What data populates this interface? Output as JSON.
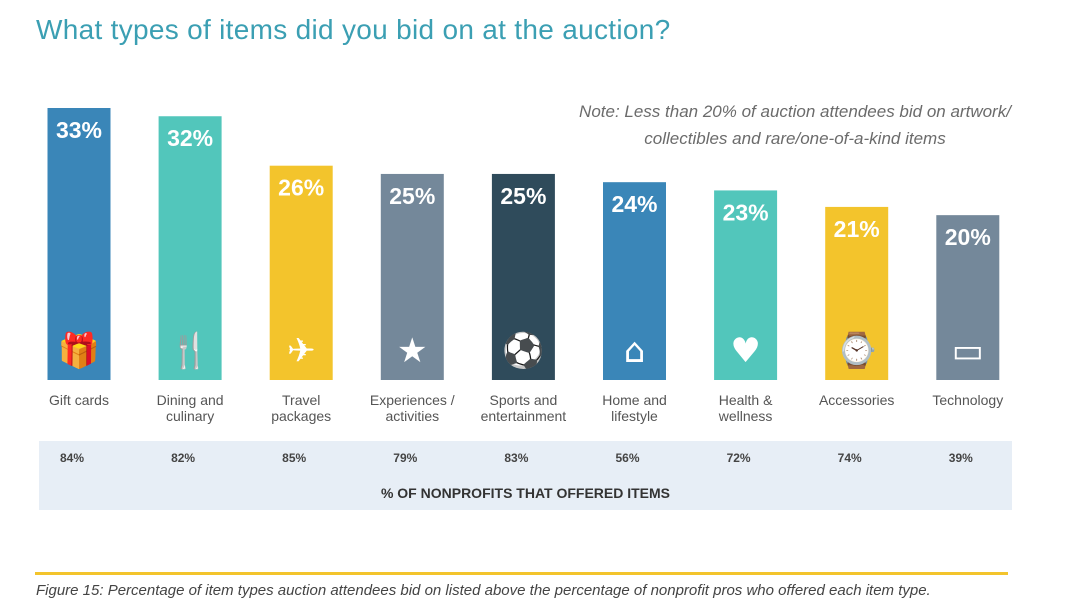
{
  "title": "What types of items did you bid on at the auction?",
  "note": "Note: Less than 20% of auction attendees bid on artwork/ collectibles and rare/one-of-a-kind items",
  "caption": "Figure 15: Percentage of item types auction attendees bid on listed above the percentage of nonprofit pros who offered each item type.",
  "chart_data": {
    "type": "bar",
    "categories": [
      "Gift cards",
      "Dining and culinary",
      "Travel packages",
      "Experiences / activities",
      "Sports and entertainment",
      "Home and lifestyle",
      "Health & wellness",
      "Accessories",
      "Technology"
    ],
    "category_lines": [
      [
        "Gift cards"
      ],
      [
        "Dining and",
        "culinary"
      ],
      [
        "Travel",
        "packages"
      ],
      [
        "Experiences /",
        "activities"
      ],
      [
        "Sports and",
        "entertainment"
      ],
      [
        "Home and",
        "lifestyle"
      ],
      [
        "Health &",
        "wellness"
      ],
      [
        "Accessories"
      ],
      [
        "Technology"
      ]
    ],
    "values": [
      33,
      32,
      26,
      25,
      25,
      24,
      23,
      21,
      20
    ],
    "data_labels": [
      "33%",
      "32%",
      "26%",
      "25%",
      "25%",
      "24%",
      "23%",
      "21%",
      "20%"
    ],
    "icons": [
      "gift-card-icon",
      "cutlery-icon",
      "globe-plane-icon",
      "tickets-icon",
      "sports-balls-icon",
      "house-icon",
      "heart-pulse-icon",
      "watch-icon",
      "laptop-icon"
    ],
    "colors": [
      "#3a86b8",
      "#52c6bb",
      "#f3c42c",
      "#74889a",
      "#2f4b5b",
      "#3a86b8",
      "#52c6bb",
      "#f3c42c",
      "#74889a"
    ],
    "offered_label": "% OF NONPROFITS THAT OFFERED ITEMS",
    "offered_values": [
      "84%",
      "82%",
      "85%",
      "79%",
      "83%",
      "56%",
      "72%",
      "74%",
      "39%"
    ],
    "ylim": [
      0,
      33
    ],
    "grid": false
  }
}
